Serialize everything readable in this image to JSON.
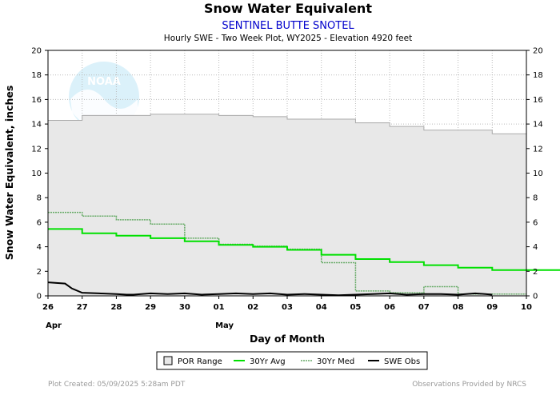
{
  "chart_data": {
    "type": "line",
    "title": "Snow Water Equivalent",
    "subtitle": "SENTINEL BUTTE SNOTEL",
    "description": "Hourly SWE - Two Week Plot, WY2025 -  Elevation 4920 feet",
    "xlabel": "Day of Month",
    "ylabel": "Snow Water Equivalent, inches",
    "ylim": [
      0,
      20
    ],
    "xlim": [
      0,
      14
    ],
    "y_ticks": [
      0,
      2,
      4,
      6,
      8,
      10,
      12,
      14,
      16,
      18,
      20
    ],
    "x_tick_labels": [
      "26",
      "27",
      "28",
      "29",
      "30",
      "01",
      "02",
      "03",
      "04",
      "05",
      "06",
      "07",
      "08",
      "09",
      "10"
    ],
    "month_labels": [
      {
        "label": "Apr",
        "at_tick": 0
      },
      {
        "label": "May",
        "at_tick": 5
      }
    ],
    "grid": true,
    "colors": {
      "por_fill": "#e8e8e8",
      "por_edge": "#aaaaaa",
      "avg": "#00e000",
      "median": "#66aa66",
      "obs": "#000000",
      "title": "#000000",
      "station": "#0000cc",
      "footer": "#999999"
    },
    "series": [
      {
        "name": "POR Range",
        "kind": "area",
        "x": [
          0,
          1,
          2,
          3,
          4,
          5,
          6,
          7,
          8,
          9,
          10,
          11,
          12,
          13,
          14
        ],
        "values": [
          14.3,
          14.7,
          14.7,
          14.8,
          14.8,
          14.7,
          14.6,
          14.4,
          14.4,
          14.1,
          13.8,
          13.5,
          13.5,
          13.2,
          13.2
        ]
      },
      {
        "name": "30Yr Avg",
        "kind": "step",
        "x": [
          0,
          1,
          2,
          3,
          4,
          5,
          6,
          7,
          8,
          9,
          10,
          11,
          12,
          13,
          14
        ],
        "values": [
          5.45,
          5.1,
          4.9,
          4.7,
          4.45,
          4.15,
          4.0,
          3.75,
          3.35,
          3.0,
          2.75,
          2.5,
          2.3,
          2.1,
          2.1
        ]
      },
      {
        "name": "30Yr Med",
        "kind": "step",
        "x": [
          0,
          1,
          2,
          3,
          4,
          5,
          6,
          7,
          8,
          9,
          10,
          11,
          12,
          13
        ],
        "values": [
          6.8,
          6.5,
          6.2,
          5.85,
          4.7,
          4.2,
          4.05,
          3.8,
          2.7,
          0.4,
          0.25,
          0.75,
          0.15,
          0.15
        ]
      },
      {
        "name": "SWE Obs",
        "kind": "line",
        "x": [
          0,
          0.5,
          0.7,
          1,
          1.5,
          2,
          2.3,
          2.5,
          3,
          3.5,
          4,
          4.5,
          5,
          5.5,
          6,
          6.5,
          7,
          7.5,
          8,
          8.5,
          9,
          9.5,
          10,
          10.5,
          11,
          11.5,
          12,
          12.5,
          12.8,
          13
        ],
        "values": [
          1.1,
          1.0,
          0.6,
          0.25,
          0.2,
          0.15,
          0.1,
          0.1,
          0.2,
          0.15,
          0.2,
          0.1,
          0.15,
          0.2,
          0.15,
          0.2,
          0.1,
          0.15,
          0.1,
          0.05,
          0.1,
          0.15,
          0.2,
          0.1,
          0.15,
          0.15,
          0.1,
          0.2,
          0.15,
          0.1
        ]
      }
    ],
    "legend": {
      "placement": "bottom-center",
      "entries": [
        "POR Range",
        "30Yr Avg",
        "30Yr Med",
        "SWE Obs"
      ]
    },
    "footer": {
      "left": "Plot Created: 05/09/2025 5:28am PDT",
      "right": "Observations Provided by NRCS"
    },
    "logo_text": "NOAA"
  }
}
